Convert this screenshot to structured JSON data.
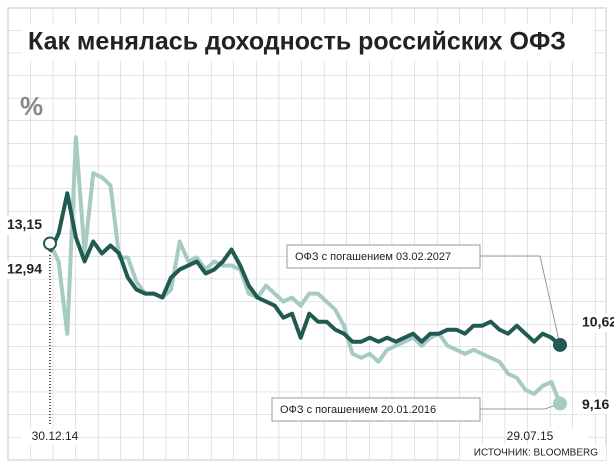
{
  "chart_data": {
    "type": "line",
    "title": "Как менялась доходность российских ОФЗ",
    "y_label": "%",
    "source": "ИСТОЧНИК: BLOOMBERG",
    "categories": [
      "30.12.14",
      null,
      null,
      null,
      null,
      null,
      null,
      null,
      null,
      null,
      null,
      null,
      null,
      null,
      null,
      null,
      null,
      null,
      null,
      null,
      null,
      null,
      null,
      null,
      null,
      null,
      null,
      null,
      null,
      null,
      null,
      null,
      null,
      null,
      null,
      null,
      null,
      null,
      null,
      null,
      null,
      null,
      null,
      null,
      null,
      null,
      null,
      null,
      null,
      null,
      null,
      null,
      null,
      null,
      null,
      null,
      null,
      null,
      null,
      "29.07.15"
    ],
    "ylim": [
      8.5,
      17.1
    ],
    "series": [
      {
        "name": "ОФЗ с погашением 03.02.2027",
        "color": "#215a50",
        "values": [
          12.94,
          13.4,
          14.4,
          13.3,
          12.7,
          13.2,
          12.9,
          13.1,
          12.9,
          12.3,
          12.0,
          11.9,
          11.9,
          11.8,
          12.3,
          12.5,
          12.6,
          12.7,
          12.4,
          12.5,
          12.7,
          13.0,
          12.6,
          12.1,
          11.8,
          11.7,
          11.6,
          11.3,
          11.4,
          10.8,
          11.4,
          11.2,
          11.2,
          11.0,
          10.9,
          10.7,
          10.7,
          10.8,
          10.7,
          10.8,
          10.7,
          10.8,
          10.9,
          10.7,
          10.9,
          10.9,
          11.0,
          11.0,
          10.9,
          11.1,
          11.1,
          11.2,
          11.0,
          10.9,
          11.1,
          10.9,
          10.7,
          10.9,
          10.8,
          10.62
        ],
        "value_labels": [
          "12,94",
          null,
          null,
          null,
          null,
          null,
          null,
          null,
          null,
          null,
          null,
          null,
          null,
          null,
          null,
          null,
          null,
          null,
          null,
          null,
          null,
          null,
          null,
          null,
          null,
          null,
          null,
          null,
          null,
          null,
          null,
          null,
          null,
          null,
          null,
          null,
          null,
          null,
          null,
          null,
          null,
          null,
          null,
          null,
          null,
          null,
          null,
          null,
          null,
          null,
          null,
          null,
          null,
          null,
          null,
          null,
          null,
          null,
          null,
          "10,62"
        ]
      },
      {
        "name": "ОФЗ с погашением 20.01.2016",
        "color": "#a6cbc3",
        "values": [
          13.15,
          12.7,
          10.9,
          15.8,
          12.9,
          14.9,
          14.8,
          14.6,
          12.8,
          12.8,
          12.2,
          11.9,
          11.9,
          11.8,
          12.0,
          13.2,
          12.7,
          12.8,
          12.5,
          12.7,
          12.6,
          12.6,
          12.5,
          11.9,
          11.8,
          12.1,
          11.9,
          11.7,
          11.8,
          11.6,
          11.9,
          11.9,
          11.7,
          11.5,
          11.1,
          10.4,
          10.3,
          10.4,
          10.2,
          10.5,
          10.6,
          10.7,
          10.8,
          10.6,
          10.8,
          10.9,
          10.6,
          10.5,
          10.4,
          10.5,
          10.4,
          10.3,
          10.2,
          9.9,
          9.8,
          9.5,
          9.4,
          9.6,
          9.7,
          9.16
        ],
        "value_labels": [
          "13,15",
          null,
          null,
          null,
          null,
          null,
          null,
          null,
          null,
          null,
          null,
          null,
          null,
          null,
          null,
          null,
          null,
          null,
          null,
          null,
          null,
          null,
          null,
          null,
          null,
          null,
          null,
          null,
          null,
          null,
          null,
          null,
          null,
          null,
          null,
          null,
          null,
          null,
          null,
          null,
          null,
          null,
          null,
          null,
          null,
          null,
          null,
          null,
          null,
          null,
          null,
          null,
          null,
          null,
          null,
          null,
          null,
          null,
          null,
          "9,16"
        ]
      }
    ]
  }
}
